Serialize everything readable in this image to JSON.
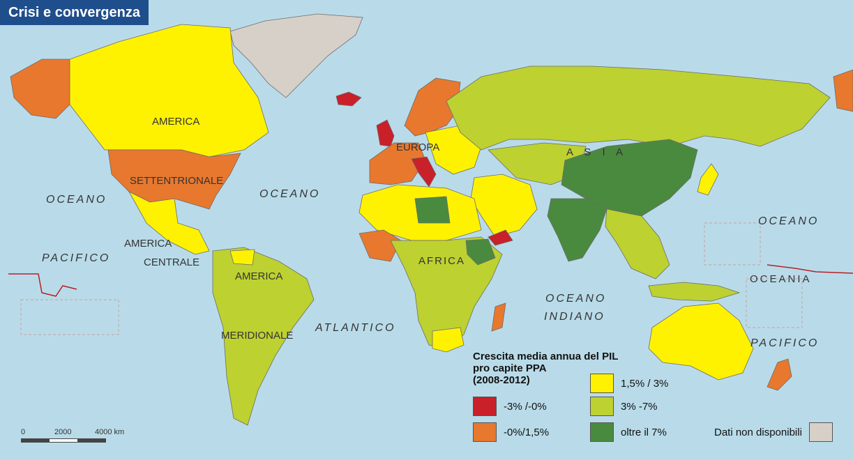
{
  "title": "Crisi e convergenza",
  "labels": {
    "america_1": "AMERICA",
    "settentrionale": "SETTENTRIONALE",
    "america_centrale_1": "AMERICA",
    "centrale": "CENTRALE",
    "america_2": "AMERICA",
    "meridionale": "MERIDIONALE",
    "europa": "EUROPA",
    "asia": "A S I A",
    "africa": "AFRICA",
    "oceania": "OCEANIA"
  },
  "oceans": {
    "oceano_nw": "OCEANO",
    "pacifico_w": "PACIFICO",
    "oceano_atl": "OCEANO",
    "atlantico": "ATLANTICO",
    "oceano_ind": "OCEANO",
    "indiano": "INDIANO",
    "oceano_ne": "OCEANO",
    "pacifico_e": "PACIFICO"
  },
  "legend": {
    "title": "Crescita media annua del PIL\npro capite PPA\n(2008-2012)",
    "items": [
      {
        "label": "-3% /-0%",
        "color": "#c9202a"
      },
      {
        "label": "-0%/1,5%",
        "color": "#e8782e"
      },
      {
        "label": "1,5% / 3%",
        "color": "#fff200"
      },
      {
        "label": "3% -7%",
        "color": "#bdd131"
      },
      {
        "label": "oltre il 7%",
        "color": "#4a8a3f"
      },
      {
        "label": "Dati non disponibili",
        "color": "#d7d0c8"
      }
    ]
  },
  "scale": {
    "zero": "0",
    "mid": "2000",
    "end": "4000 km"
  },
  "colors": {
    "ocean": "#b9dbe9",
    "border": "#6b6b6b",
    "title_bg": "#1f4e8c"
  }
}
